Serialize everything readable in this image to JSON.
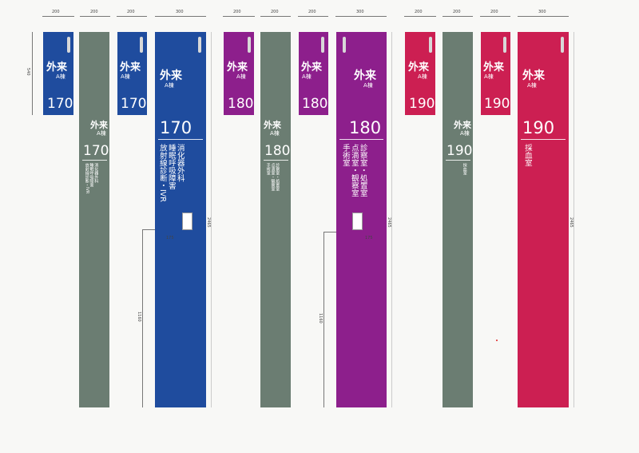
{
  "colors": {
    "blue": "#1f4c9e",
    "purple": "#8d1f8c",
    "red": "#cc1f52",
    "gray": "#6b7d72",
    "paper": "#f8f8f6"
  },
  "dims": {
    "w200": "200",
    "w300": "300",
    "h540": "540",
    "h2465": "2465",
    "h1160": "1160",
    "w175": "175"
  },
  "sign": {
    "title": "外来",
    "building": "A棟"
  },
  "groups": [
    {
      "number": "170",
      "depts": [
        "消化器外科",
        "睡眠呼吸障害",
        "放射線診断・IVR"
      ]
    },
    {
      "number": "180",
      "depts": [
        "診察室・処置室",
        "点滴室・観察室",
        "手術室"
      ]
    },
    {
      "number": "190",
      "depts": [
        "採血室"
      ]
    }
  ]
}
